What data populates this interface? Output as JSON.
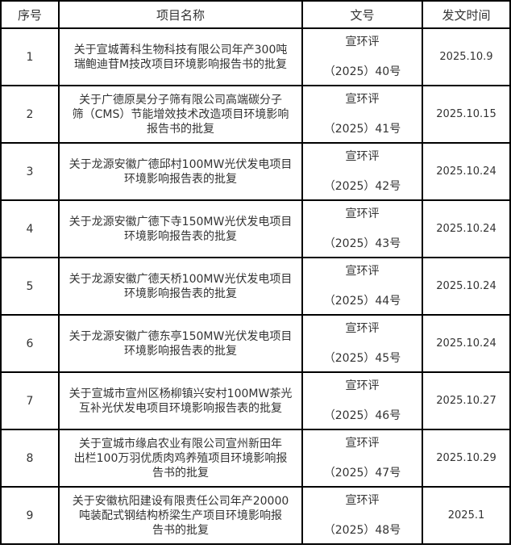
{
  "headers": [
    "序号",
    "项目名称",
    "文号",
    "发文时间"
  ],
  "rows": [
    {
      "no": "1",
      "name": [
        "关于宣城菁科生物科技有限公司年产300吨",
        "瑞鲍迪苷M技改项目环境影响报告书的批复"
      ],
      "doc": [
        "宣环评",
        "（2025）40号"
      ],
      "date": "2025.10.9"
    },
    {
      "no": "2",
      "name": [
        "关于广德原昊分子筛有限公司高端碳分子",
        "筛（CMS）节能增效技术改造项目环境影响",
        "报告书的批复"
      ],
      "doc": [
        "宣环评",
        "（2025）41号"
      ],
      "date": "2025.10.15"
    },
    {
      "no": "3",
      "name": [
        "关于龙源安徽广德邱村100MW光伏发电项目",
        "环境影响报告表的批复"
      ],
      "doc": [
        "宣环评",
        "（2025）42号"
      ],
      "date": "2025.10.24"
    },
    {
      "no": "4",
      "name": [
        "关于龙源安徽广德下寺150MW光伏发电项目",
        "环境影响报告表的批复"
      ],
      "doc": [
        "宣环评",
        "（2025）43号"
      ],
      "date": "2025.10.24"
    },
    {
      "no": "5",
      "name": [
        "关于龙源安徽广德天桥100MW光伏发电项目",
        "环境影响报告表的批复"
      ],
      "doc": [
        "宣环评",
        "（2025）44号"
      ],
      "date": "2025.10.24"
    },
    {
      "no": "6",
      "name": [
        "关于龙源安徽广德东亭150MW光伏发电项目",
        "环境影响报告表的批复"
      ],
      "doc": [
        "宣环评",
        "（2025）45号"
      ],
      "date": "2025.10.24"
    },
    {
      "no": "7",
      "name": [
        "关于宣城市宣州区杨柳镇兴安村100MW茶光",
        "互补光伏发电项目环境影响报告表的批复"
      ],
      "doc": [
        "宣环评",
        "（2025）46号"
      ],
      "date": "2025.10.27"
    },
    {
      "no": "8",
      "name": [
        "关于宣城市缘启农业有限公司宣州新田年",
        "出栏100万羽优质肉鸡养殖项目环境影响报",
        "告书的批复"
      ],
      "doc": [
        "宣环评",
        "（2025）47号"
      ],
      "date": "2025.10.29"
    },
    {
      "no": "9",
      "name": [
        "关于安徽杭阳建设有限责任公司年产20000",
        "吨装配式钢结构桥梁生产项目环境影响报",
        "告书的批复"
      ],
      "doc": [
        "宣环评",
        "（2025）48号"
      ],
      "date": "2025.1"
    }
  ]
}
